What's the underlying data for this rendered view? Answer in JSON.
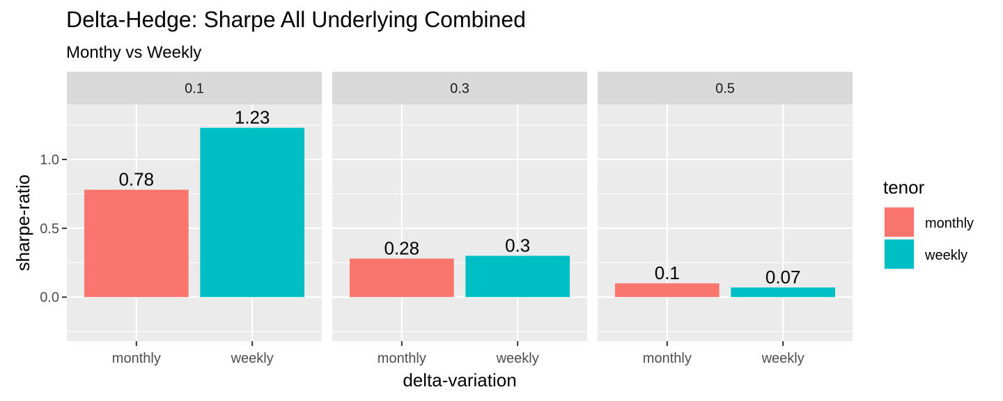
{
  "chart_data": {
    "type": "bar",
    "title": "Delta-Hedge: Sharpe All Underlying Combined",
    "subtitle": "Monthy vs Weekly",
    "xlabel": "delta-variation",
    "ylabel": "sharpe-ratio",
    "ylim": [
      -0.32,
      1.4
    ],
    "y_ticks": [
      0.0,
      0.5,
      1.0
    ],
    "y_tick_labels": [
      "0.0",
      "0.5",
      "1.0"
    ],
    "grid": true,
    "categories": [
      "monthly",
      "weekly"
    ],
    "panels": [
      {
        "strip_label": "0.1",
        "values": [
          0.78,
          1.23
        ],
        "value_labels": [
          "0.78",
          "1.23"
        ]
      },
      {
        "strip_label": "0.3",
        "values": [
          0.28,
          0.3
        ],
        "value_labels": [
          "0.28",
          "0.3"
        ]
      },
      {
        "strip_label": "0.5",
        "values": [
          0.1,
          0.07
        ],
        "value_labels": [
          "0.1",
          "0.07"
        ]
      }
    ],
    "legend": {
      "title": "tenor",
      "position": "right",
      "entries": [
        {
          "name": "monthly",
          "color": "#F8766D"
        },
        {
          "name": "weekly",
          "color": "#00BFC4"
        }
      ]
    }
  },
  "colors": {
    "panel_background": "#EBEBEB",
    "grid_major": "#FFFFFF",
    "strip_background": "#D9D9D9",
    "monthly": "#F8766D",
    "weekly": "#00BFC4"
  }
}
